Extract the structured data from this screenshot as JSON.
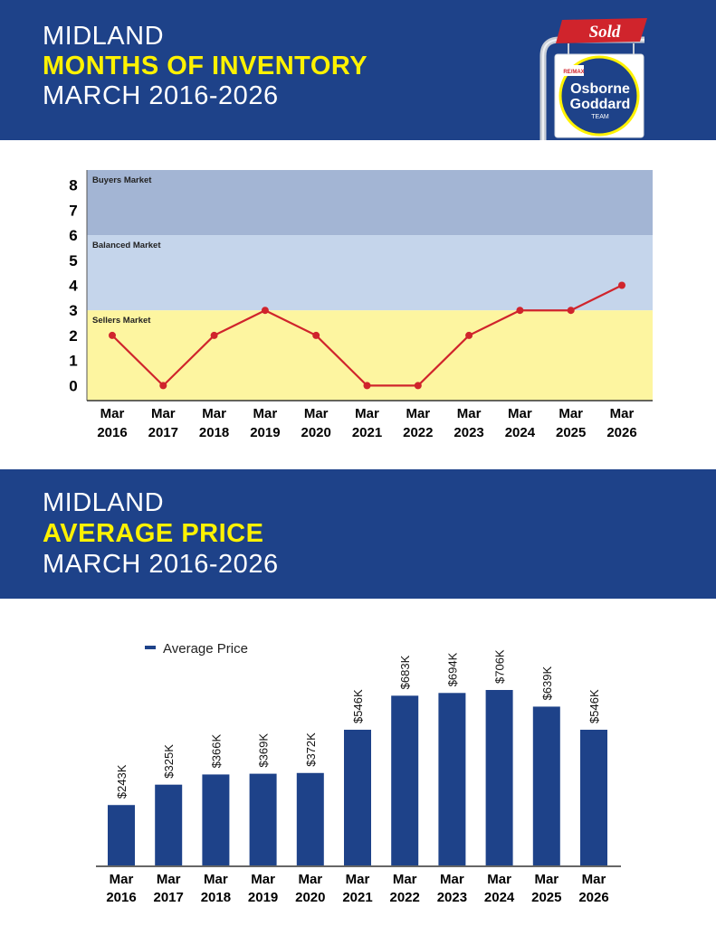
{
  "header1": {
    "line1": "MIDLAND",
    "line2": "MONTHS OF INVENTORY",
    "line3": "MARCH 2016-2026"
  },
  "header2": {
    "line1": "MIDLAND",
    "line2": "AVERAGE PRICE",
    "line3": "MARCH 2016-2026"
  },
  "logo": {
    "sold": "Sold",
    "brand": "RE/MAX",
    "name1": "Osborne",
    "name2": "Goddard",
    "team": "TEAM"
  },
  "colors": {
    "band": "#1e4289",
    "accent_yellow": "#fff200",
    "line": "#d0242c",
    "bar": "#1e4289",
    "buyers_zone": "#a3b5d4",
    "balanced_zone": "#c5d5eb",
    "sellers_zone": "#fdf5a0"
  },
  "chart_data": [
    {
      "type": "line",
      "title": "Months of Inventory",
      "categories": [
        "Mar 2016",
        "Mar 2017",
        "Mar 2018",
        "Mar 2019",
        "Mar 2020",
        "Mar 2021",
        "Mar 2022",
        "Mar 2023",
        "Mar 2024",
        "Mar 2025",
        "Mar 2026"
      ],
      "values": [
        2,
        0,
        2,
        3,
        2,
        0,
        0,
        2,
        3,
        3,
        4
      ],
      "ylim": [
        -0.6,
        8.6
      ],
      "yticks": [
        "0",
        "1",
        "2",
        "3",
        "4",
        "5",
        "6",
        "7",
        "8"
      ],
      "zones": [
        {
          "label": "Buyers Market",
          "from": 6,
          "to": 8.6
        },
        {
          "label": "Balanced Market",
          "from": 3,
          "to": 6
        },
        {
          "label": "Sellers Market",
          "from": -0.6,
          "to": 3
        }
      ]
    },
    {
      "type": "bar",
      "title": "Average Price",
      "legend": "Average Price",
      "categories": [
        "Mar 2016",
        "Mar 2017",
        "Mar 2018",
        "Mar 2019",
        "Mar 2020",
        "Mar 2021",
        "Mar 2022",
        "Mar 2023",
        "Mar 2024",
        "Mar 2025",
        "Mar 2026"
      ],
      "values": [
        243,
        325,
        366,
        369,
        372,
        546,
        683,
        694,
        706,
        639,
        546
      ],
      "labels": [
        "$243K",
        "$325K",
        "$366K",
        "$369K",
        "$372K",
        "$546K",
        "$683K",
        "$694K",
        "$706K",
        "$639K",
        "$546K"
      ],
      "unit": "$K",
      "ylim": [
        0,
        706
      ]
    }
  ]
}
